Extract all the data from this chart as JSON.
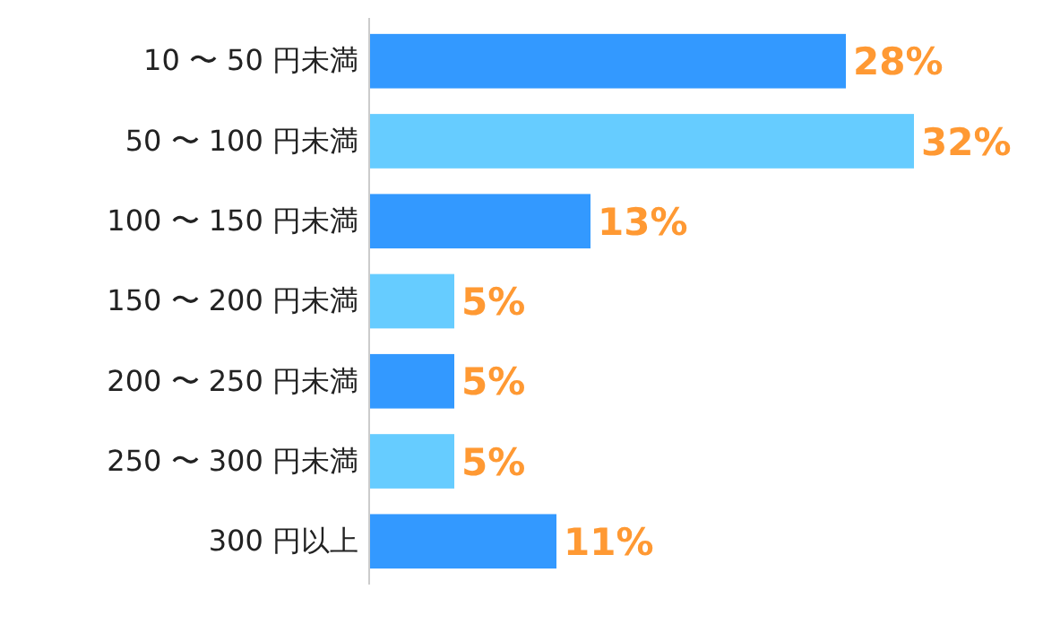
{
  "chart_data": {
    "type": "bar",
    "orientation": "horizontal",
    "categories": [
      "10 〜 50 円未満",
      "50 〜 100 円未満",
      "100 〜 150 円未満",
      "150 〜 200 円未満",
      "200 〜 250 円未満",
      "250 〜 300 円未満",
      "300 円以上"
    ],
    "values": [
      28,
      32,
      13,
      5,
      5,
      5,
      11
    ],
    "colors": [
      "#3399ff",
      "#66ccff",
      "#3399ff",
      "#66ccff",
      "#3399ff",
      "#66ccff",
      "#3399ff"
    ],
    "value_labels": [
      "28%",
      "32%",
      "13%",
      "5%",
      "5%",
      "5%",
      "11%"
    ],
    "xlim": [
      0,
      32
    ],
    "tick_labels": "y"
  }
}
